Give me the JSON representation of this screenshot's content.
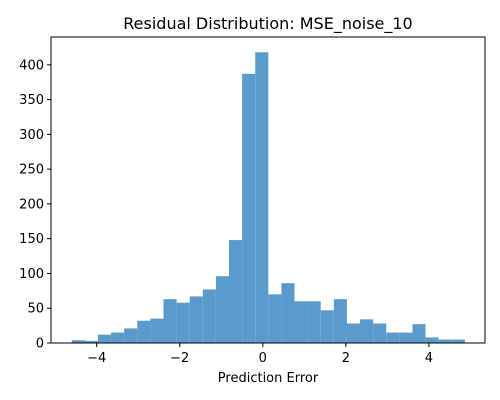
{
  "chart_data": {
    "type": "bar",
    "subtype": "histogram",
    "title": "Residual Distribution: MSE_noise_10",
    "xlabel": "Prediction Error",
    "ylabel": "",
    "xlim": [
      -5.1,
      5.35
    ],
    "ylim": [
      0,
      440
    ],
    "x_ticks": [
      -4,
      -2,
      0,
      2,
      4
    ],
    "y_ticks": [
      0,
      50,
      100,
      150,
      200,
      250,
      300,
      350,
      400
    ],
    "bar_color": "#5b9bcb",
    "bin_start": -4.6,
    "bin_width": 0.3155,
    "values": [
      4,
      3,
      12,
      15,
      21,
      32,
      35,
      63,
      58,
      67,
      77,
      96,
      148,
      387,
      418,
      70,
      86,
      60,
      60,
      47,
      63,
      28,
      34,
      28,
      15,
      15,
      27,
      8,
      5,
      5
    ]
  }
}
